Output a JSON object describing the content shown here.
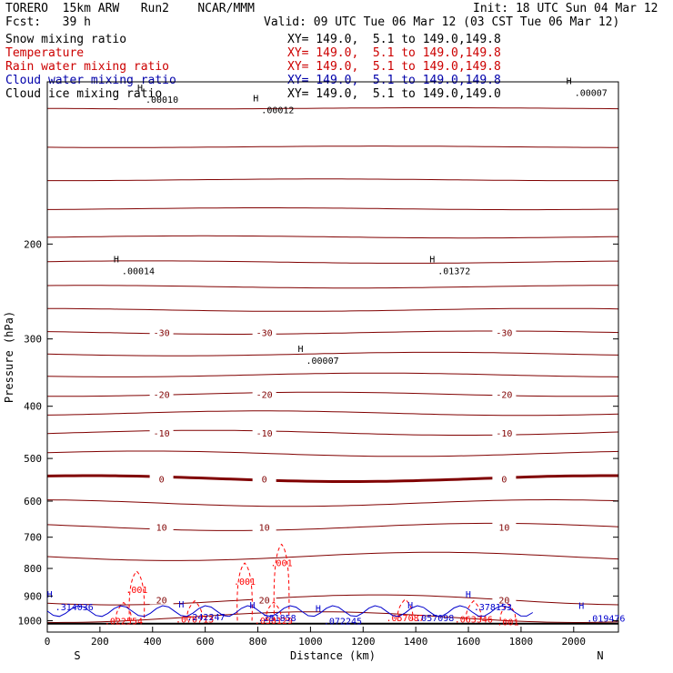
{
  "header": {
    "model": "TORERO  15km ARW   Run2    NCAR/MMM",
    "init": "Init: 18 UTC Sun 04 Mar 12",
    "fcst": "Fcst:   39 h",
    "valid": "Valid: 09 UTC Tue 06 Mar 12 (03 CST Tue 06 Mar 12)"
  },
  "legend": [
    {
      "name": "Snow mixing ratio",
      "xy": "XY= 149.0,  5.1 to 149.0,149.8",
      "color": "#000000"
    },
    {
      "name": "Temperature",
      "xy": "XY= 149.0,  5.1 to 149.0,149.8",
      "color": "#cc0000"
    },
    {
      "name": "Rain water mixing ratio",
      "xy": "XY= 149.0,  5.1 to 149.0,149.8",
      "color": "#cc0000"
    },
    {
      "name": "Cloud water mixing ratio",
      "xy": "XY= 149.0,  5.1 to 149.0,149.8",
      "color": "#0000aa"
    },
    {
      "name": "Cloud ice mixing ratio",
      "xy": "XY= 149.0,  5.1 to 149.0,149.0",
      "color": "#000000"
    }
  ],
  "chart_data": {
    "type": "line",
    "xlabel": "Distance (km)",
    "ylabel": "Pressure (hPa)",
    "xlim": [
      0,
      2170
    ],
    "ylim": [
      100,
      1050
    ],
    "x_ticks": [
      0,
      200,
      400,
      600,
      800,
      1000,
      1200,
      1400,
      1600,
      1800,
      2000
    ],
    "y_ticks": [
      200,
      300,
      400,
      500,
      600,
      700,
      800,
      900,
      1000
    ],
    "left_end": "S",
    "right_end": "N",
    "colors": {
      "temperature": "#800000",
      "rain": "#ff0000",
      "cloud_water": "#0000cc",
      "axis": "#000000"
    },
    "temperature_isotherms": [
      {
        "p": 112
      },
      {
        "p": 132
      },
      {
        "p": 152
      },
      {
        "p": 172
      },
      {
        "p": 194
      },
      {
        "p": 216
      },
      {
        "p": 240
      },
      {
        "p": 265
      },
      {
        "p": 292,
        "label": "-30"
      },
      {
        "p": 320
      },
      {
        "p": 350
      },
      {
        "p": 380,
        "label": "-20"
      },
      {
        "p": 412
      },
      {
        "p": 448,
        "label": "-10"
      },
      {
        "p": 490
      },
      {
        "p": 545,
        "label": "0",
        "bold": true
      },
      {
        "p": 605
      },
      {
        "p": 670,
        "label": "10"
      },
      {
        "p": 760
      },
      {
        "p": 915,
        "label": "20"
      },
      {
        "p": 985
      }
    ],
    "snow_max_labels": [
      {
        "x": 380,
        "p": 108,
        "label": ".00010"
      },
      {
        "x": 820,
        "p": 113,
        "label": ".00012"
      },
      {
        "x": 2010,
        "p": 105,
        "label": ".00007"
      },
      {
        "x": 290,
        "p": 225,
        "label": ".00014"
      },
      {
        "x": 1490,
        "p": 225,
        "label": ".01372"
      },
      {
        "x": 990,
        "p": 330,
        "label": ".00007"
      }
    ],
    "rain_labels": [
      {
        "x": 340,
        "p": 875,
        "label": ".001"
      },
      {
        "x": 750,
        "p": 845,
        "label": ".001"
      },
      {
        "x": 890,
        "p": 780,
        "label": ".001"
      },
      {
        "x": 1750,
        "p": 1005,
        "label": ".001"
      },
      {
        "x": 290,
        "p": 1000,
        "label": ".022554"
      },
      {
        "x": 560,
        "p": 993,
        "label": ".070713"
      },
      {
        "x": 860,
        "p": 998,
        "label": ".050129"
      },
      {
        "x": 1360,
        "p": 986,
        "label": ".057087"
      },
      {
        "x": 1620,
        "p": 993,
        "label": ".063346"
      }
    ],
    "cloud_labels": [
      {
        "x": 30,
        "p": 942,
        "label": ".314036"
      },
      {
        "x": 530,
        "p": 982,
        "label": ".242247"
      },
      {
        "x": 800,
        "p": 986,
        "label": ".281858"
      },
      {
        "x": 1050,
        "p": 1000,
        "label": ".072245"
      },
      {
        "x": 1400,
        "p": 986,
        "label": ".057098"
      },
      {
        "x": 1620,
        "p": 942,
        "label": ".378153"
      },
      {
        "x": 2050,
        "p": 988,
        "label": ".019476"
      }
    ]
  }
}
